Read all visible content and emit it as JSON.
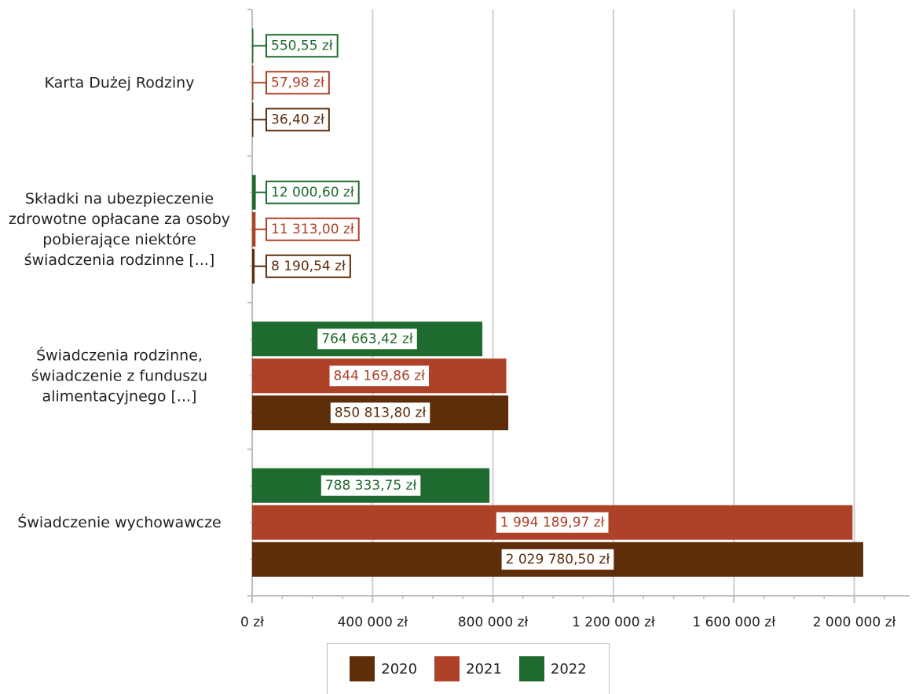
{
  "chart_data": {
    "type": "bar",
    "orientation": "horizontal",
    "categories": [
      "Karta Dużej Rodziny",
      "Składki na ubezpieczenie zdrowotne opłacane za osoby pobierające niektóre świadczenia rodzinne [...]",
      "Świadczenia rodzinne, świadczenie z funduszu alimentacyjnego [...]",
      "Świadczenie wychowawcze"
    ],
    "category_lines": [
      [
        "Karta Dużej Rodziny"
      ],
      [
        "Składki na ubezpieczenie",
        "zdrowotne opłacane za osoby",
        "pobierające niektóre",
        "świadczenia rodzinne [...]"
      ],
      [
        "Świadczenia rodzinne,",
        "świadczenie z funduszu",
        "alimentacyjnego [...]"
      ],
      [
        "Świadczenie wychowawcze"
      ]
    ],
    "series": [
      {
        "name": "2020",
        "color": "#5e2d0a",
        "values": [
          36.4,
          8190.54,
          850813.8,
          2029780.5
        ],
        "labels": [
          "36,40 zł",
          "8 190,54 zł",
          "850 813,80 zł",
          "2 029 780,50 zł"
        ]
      },
      {
        "name": "2021",
        "color": "#ad4228",
        "values": [
          57.98,
          11313.0,
          844169.86,
          1994189.97
        ],
        "labels": [
          "57,98 zł",
          "11 313,00 zł",
          "844 169,86 zł",
          "1 994 189,97 zł"
        ]
      },
      {
        "name": "2022",
        "color": "#1f6a2f",
        "values": [
          550.55,
          12000.6,
          764663.42,
          788333.75
        ],
        "labels": [
          "550,55 zł",
          "12 000,60 zł",
          "764 663,42 zł",
          "788 333,75 zł"
        ]
      }
    ],
    "xlim": [
      0,
      2200000
    ],
    "x_ticks": [
      0,
      400000,
      800000,
      1200000,
      1600000,
      2000000
    ],
    "x_tick_labels": [
      "0 zł",
      "400 000 zł",
      "800 000 zł",
      "1 200 000 zł",
      "1 600 000 zł",
      "2 000 000 zł"
    ],
    "grid": true,
    "legend_position": "bottom",
    "title": "",
    "xlabel": "",
    "ylabel": ""
  }
}
